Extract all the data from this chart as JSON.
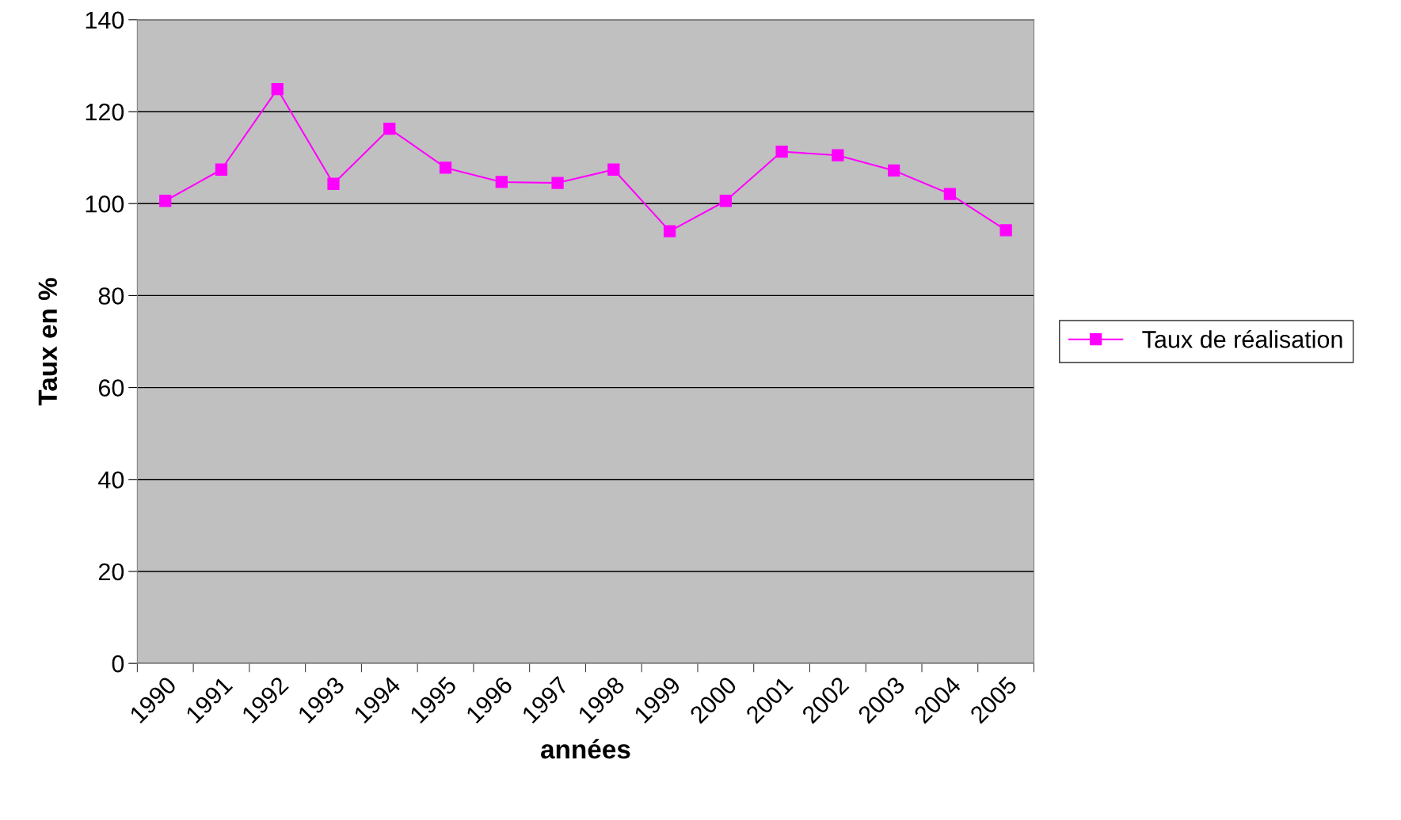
{
  "chart_data": {
    "type": "line",
    "xlabel": "années",
    "ylabel": "Taux en %",
    "categories": [
      "1990",
      "1991",
      "1992",
      "1993",
      "1994",
      "1995",
      "1996",
      "1997",
      "1998",
      "1999",
      "2000",
      "2001",
      "2002",
      "2003",
      "2004",
      "2005"
    ],
    "series": [
      {
        "name": "Taux de réalisation",
        "color": "#ff00ff",
        "values": [
          100.6,
          107.4,
          124.9,
          104.3,
          116.3,
          107.8,
          104.7,
          104.5,
          107.4,
          94.0,
          100.6,
          111.3,
          110.5,
          107.2,
          102.1,
          94.2
        ]
      }
    ],
    "ylim": [
      0,
      140
    ],
    "yticks": [
      0,
      20,
      40,
      60,
      80,
      100,
      120,
      140
    ],
    "grid": "y",
    "legend": "right",
    "marker": "square",
    "line_style": "solid"
  }
}
